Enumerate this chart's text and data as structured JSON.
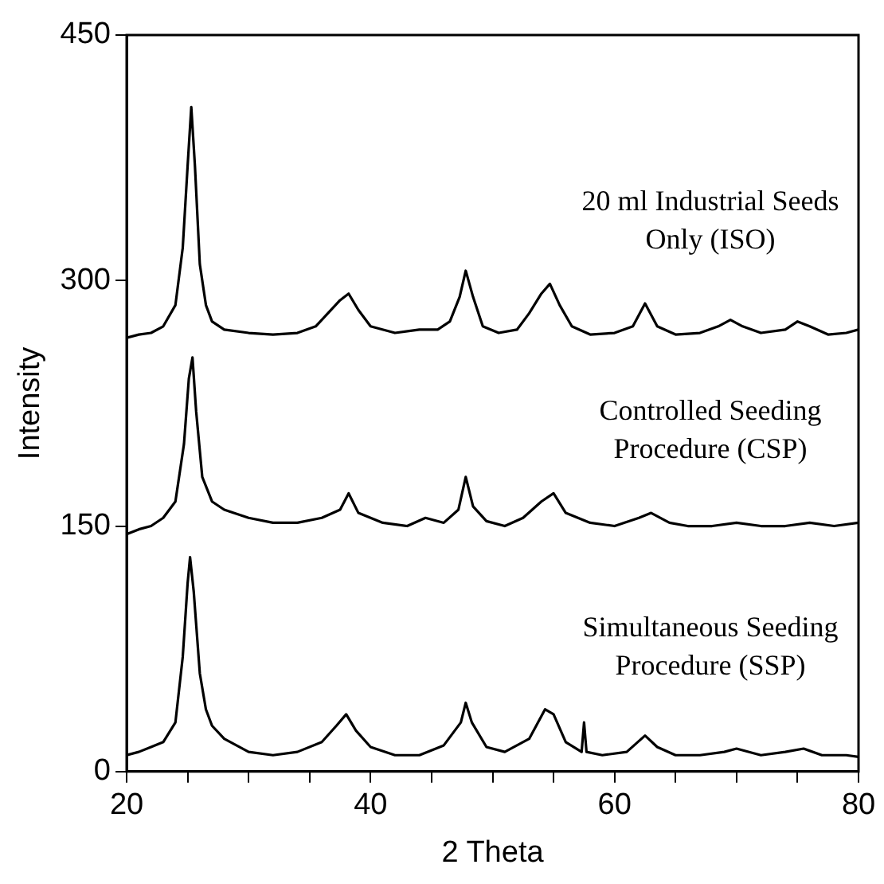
{
  "chart_data": {
    "type": "line",
    "xlabel": "2 Theta",
    "ylabel": "Intensity",
    "xlim": [
      20,
      80
    ],
    "ylim": [
      0,
      450
    ],
    "xticks": [
      20,
      {
        "value": 25,
        "label": null
      },
      {
        "value": 30,
        "label": null
      },
      {
        "value": 35,
        "label": null
      },
      40,
      {
        "value": 45,
        "label": null
      },
      {
        "value": 50,
        "label": null
      },
      {
        "value": 55,
        "label": null
      },
      60,
      {
        "value": 65,
        "label": null
      },
      {
        "value": 70,
        "label": null
      },
      {
        "value": 75,
        "label": null
      },
      80
    ],
    "yticks": [
      0,
      150,
      300,
      450
    ],
    "grid": false,
    "legend": false,
    "marker": "none",
    "line_style": "solid",
    "series": [
      {
        "name": "20 ml Industrial Seeds Only (ISO)",
        "color": "#000000",
        "x": [
          20,
          21,
          22,
          23,
          24,
          24.6,
          25,
          25.3,
          25.6,
          26,
          26.5,
          27,
          28,
          30,
          32,
          34,
          35.5,
          36.5,
          37.5,
          38.2,
          39,
          40,
          42,
          44,
          45.5,
          46.5,
          47.3,
          47.8,
          48.4,
          49.2,
          50.5,
          52,
          53,
          54,
          54.7,
          55.5,
          56.5,
          58,
          60,
          61.5,
          62.5,
          63.5,
          65,
          67,
          68.5,
          69.5,
          70.5,
          72,
          74,
          75,
          76,
          77.5,
          79,
          80
        ],
        "values": [
          265,
          267,
          268,
          272,
          285,
          320,
          370,
          406,
          370,
          310,
          285,
          275,
          270,
          268,
          267,
          268,
          272,
          280,
          288,
          292,
          282,
          272,
          268,
          270,
          270,
          275,
          290,
          306,
          290,
          272,
          268,
          270,
          280,
          292,
          298,
          285,
          272,
          267,
          268,
          272,
          286,
          272,
          267,
          268,
          272,
          276,
          272,
          268,
          270,
          275,
          272,
          267,
          268,
          270
        ]
      },
      {
        "name": "Controlled Seeding Procedure (CSP)",
        "color": "#000000",
        "x": [
          20,
          21,
          22,
          23,
          24,
          24.7,
          25.1,
          25.4,
          25.7,
          26.2,
          27,
          28,
          30,
          32,
          34,
          36,
          37.5,
          38.2,
          39,
          41,
          43,
          44.5,
          46,
          47.2,
          47.8,
          48.4,
          49.5,
          51,
          52.5,
          54,
          55,
          56,
          58,
          60,
          62,
          63,
          64.5,
          66,
          68,
          70,
          72,
          74,
          76,
          78,
          80
        ],
        "values": [
          145,
          148,
          150,
          155,
          165,
          200,
          240,
          253,
          220,
          180,
          165,
          160,
          155,
          152,
          152,
          155,
          160,
          170,
          158,
          152,
          150,
          155,
          152,
          160,
          180,
          162,
          153,
          150,
          155,
          165,
          170,
          158,
          152,
          150,
          155,
          158,
          152,
          150,
          150,
          152,
          150,
          150,
          152,
          150,
          152
        ]
      },
      {
        "name": "Simultaneous Seeding Procedure (SSP)",
        "color": "#000000",
        "x": [
          20,
          21,
          22,
          23,
          24,
          24.6,
          25,
          25.2,
          25.5,
          26,
          26.5,
          27,
          28,
          30,
          32,
          34,
          36,
          37.2,
          38,
          38.8,
          40,
          42,
          44,
          46,
          47.4,
          47.8,
          48.3,
          49.5,
          51,
          53,
          54.3,
          55,
          56,
          57.3,
          57.5,
          57.7,
          59,
          61,
          62.5,
          63.5,
          65,
          67,
          69,
          70,
          72,
          74,
          75.5,
          77,
          79,
          80
        ],
        "values": [
          10,
          12,
          15,
          18,
          30,
          70,
          115,
          131,
          110,
          60,
          38,
          28,
          20,
          12,
          10,
          12,
          18,
          28,
          35,
          25,
          15,
          10,
          10,
          16,
          30,
          42,
          30,
          15,
          12,
          20,
          38,
          35,
          18,
          12,
          30,
          12,
          10,
          12,
          22,
          15,
          10,
          10,
          12,
          14,
          10,
          12,
          14,
          10,
          10,
          9
        ]
      }
    ]
  }
}
